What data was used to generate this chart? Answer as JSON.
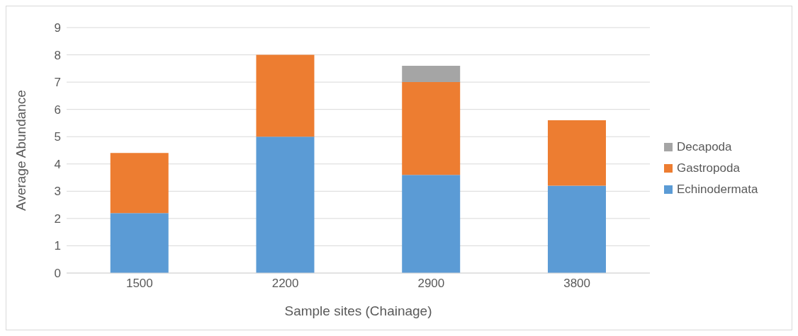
{
  "chart_data": {
    "type": "bar",
    "stacked": true,
    "xlabel": "Sample sites (Chainage)",
    "ylabel": "Average Abundance",
    "categories": [
      "1500",
      "2200",
      "2900",
      "3800"
    ],
    "series": [
      {
        "name": "Echinodermata",
        "color": "#5b9bd5",
        "values": [
          2.2,
          5,
          3.6,
          3.2
        ]
      },
      {
        "name": "Gastropoda",
        "color": "#ed7d31",
        "values": [
          2.2,
          3,
          3.4,
          2.4
        ]
      },
      {
        "name": "Decapoda",
        "color": "#a5a5a5",
        "values": [
          0,
          0,
          0.6,
          0
        ]
      }
    ],
    "ylim": [
      0,
      9
    ],
    "yticks": [
      0,
      1,
      2,
      3,
      4,
      5,
      6,
      7,
      8,
      9
    ],
    "grid": "y",
    "legend": "right"
  }
}
